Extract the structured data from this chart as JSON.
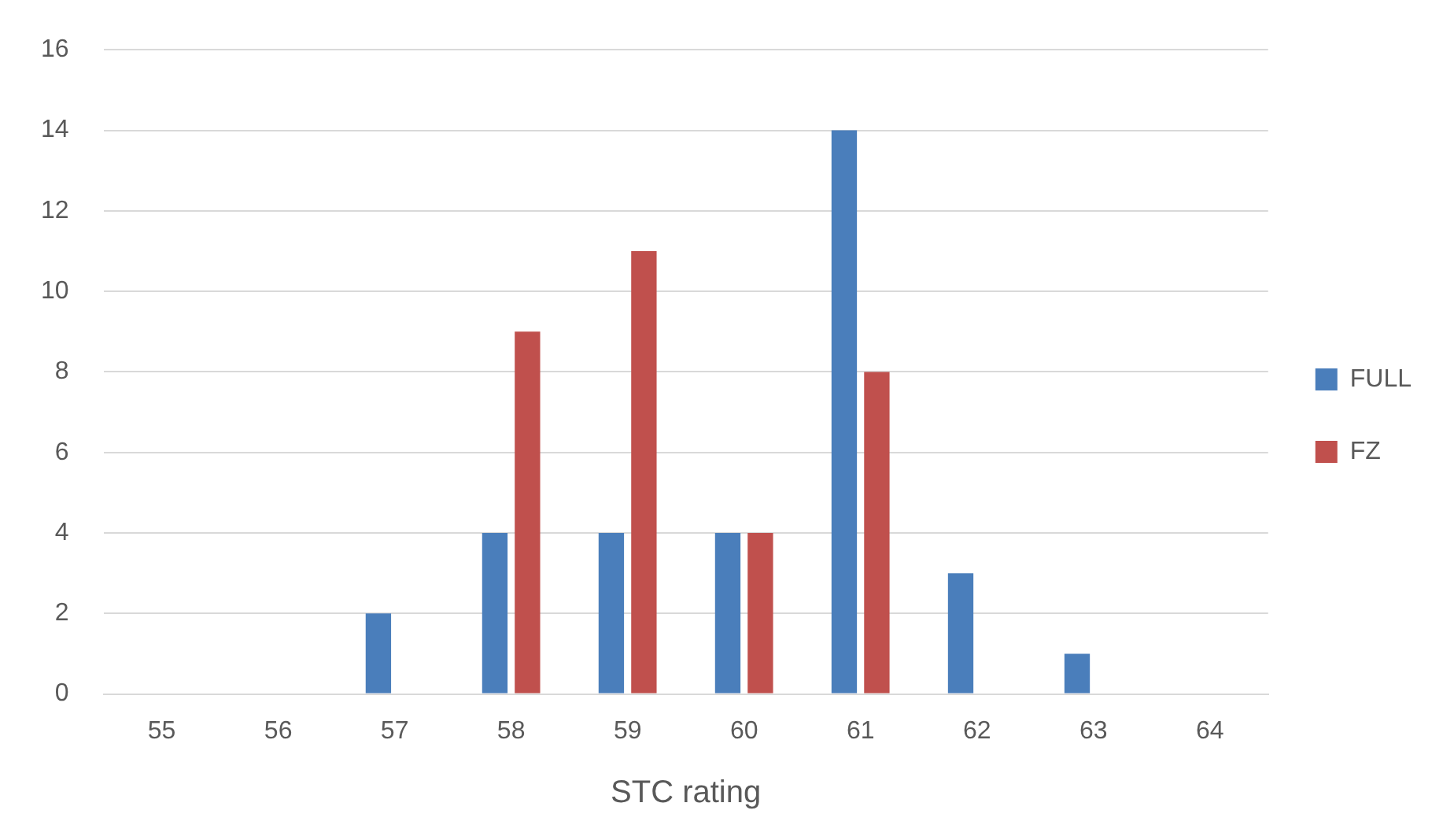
{
  "chart_data": {
    "type": "bar",
    "xlabel": "STC rating",
    "categories": [
      "55",
      "56",
      "57",
      "58",
      "59",
      "60",
      "61",
      "62",
      "63",
      "64"
    ],
    "series": [
      {
        "name": "FULL",
        "color": "#4a7ebb",
        "values": [
          0,
          0,
          2,
          4,
          4,
          4,
          14,
          3,
          1,
          0
        ]
      },
      {
        "name": "FZ",
        "color": "#c0504d",
        "values": [
          0,
          0,
          0,
          9,
          11,
          4,
          8,
          0,
          0,
          0
        ]
      }
    ],
    "ylim": [
      0,
      16
    ],
    "yticks": [
      0,
      2,
      4,
      6,
      8,
      10,
      12,
      14,
      16
    ],
    "grid": "y",
    "legend": "right"
  }
}
